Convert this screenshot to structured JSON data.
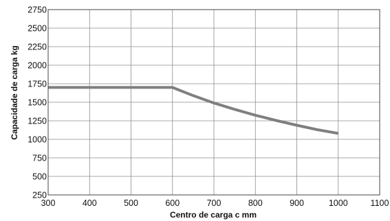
{
  "chart_data": {
    "type": "line",
    "title": "",
    "xlabel": "Centro de carga c mm",
    "ylabel": "Capacidade de carga kg",
    "xlim": [
      300,
      1100
    ],
    "ylim": [
      250,
      2750
    ],
    "xticks": [
      300,
      400,
      500,
      600,
      700,
      800,
      900,
      1000,
      1100
    ],
    "yticks": [
      250,
      500,
      750,
      1000,
      1250,
      1500,
      1750,
      2000,
      2250,
      2500,
      2750
    ],
    "grid": true,
    "legend": "none",
    "series": [
      {
        "color": "#7f7f7f",
        "x": [
          300,
          600,
          650,
          700,
          750,
          800,
          850,
          900,
          950,
          1000
        ],
        "y": [
          1700,
          1700,
          1590,
          1490,
          1405,
          1325,
          1255,
          1190,
          1130,
          1080
        ]
      }
    ]
  }
}
